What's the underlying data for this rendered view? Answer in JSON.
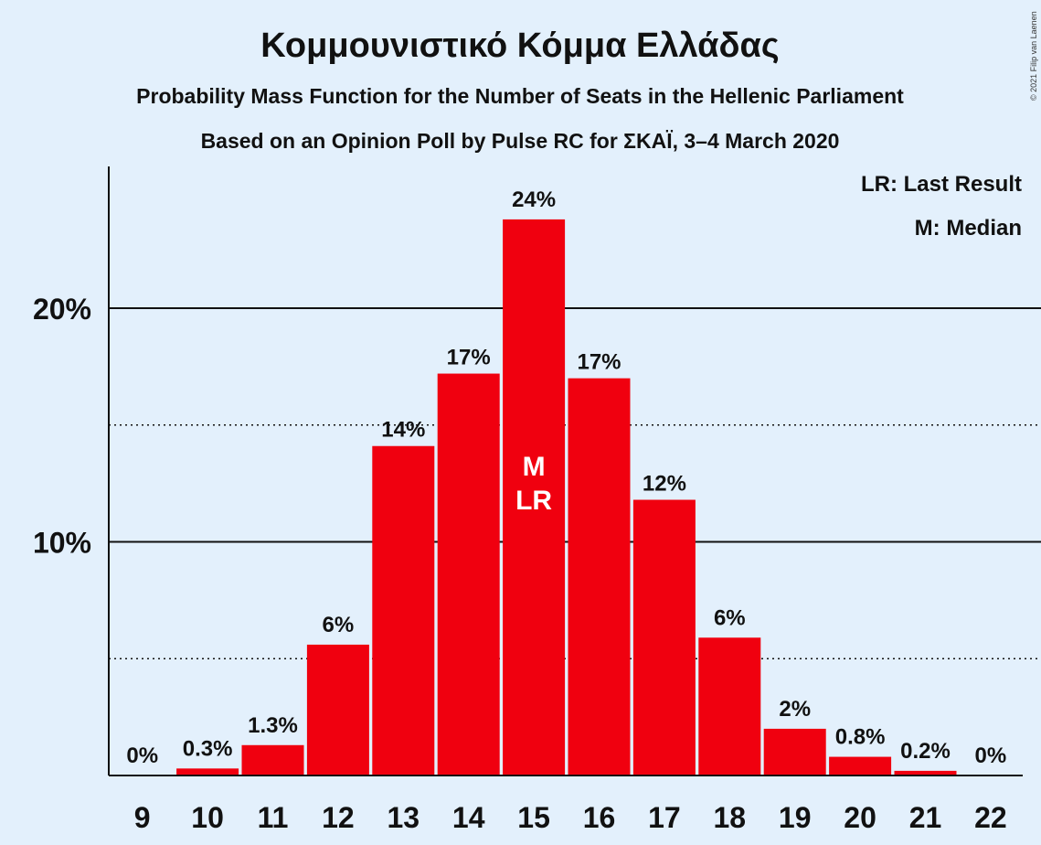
{
  "copyright": "© 2021 Filip van Laenen",
  "legend": {
    "last_result": "LR: Last Result",
    "median": "M: Median"
  },
  "colors": {
    "bar": "#F0000F",
    "background": "#E3F0FC",
    "text": "#111111"
  },
  "chart_data": {
    "type": "bar",
    "title": "Κομμουνιστικό Κόμμα Ελλάδας",
    "subtitle": "Probability Mass Function for the Number of Seats in the Hellenic Parliament",
    "subtitle2": "Based on an Opinion Poll by Pulse RC for ΣΚΑΪ, 3–4 March 2020",
    "xlabel": "",
    "ylabel": "",
    "categories": [
      "9",
      "10",
      "11",
      "12",
      "13",
      "14",
      "15",
      "16",
      "17",
      "18",
      "19",
      "20",
      "21",
      "22"
    ],
    "values": [
      0,
      0.3,
      1.3,
      5.6,
      14.1,
      17.2,
      23.8,
      17.0,
      11.8,
      5.9,
      2.0,
      0.8,
      0.2,
      0
    ],
    "labels": [
      "0%",
      "0.3%",
      "1.3%",
      "6%",
      "14%",
      "17%",
      "24%",
      "17%",
      "12%",
      "6%",
      "2%",
      "0.8%",
      "0.2%",
      "0%"
    ],
    "ylim": [
      0,
      26
    ],
    "yticks": [
      {
        "value": 10,
        "label": "10%"
      },
      {
        "value": 20,
        "label": "20%"
      }
    ],
    "dotted_gridlines": [
      5,
      15
    ],
    "median_category": "15",
    "last_result_category": "15",
    "median_marker": "M",
    "last_result_marker": "LR"
  }
}
